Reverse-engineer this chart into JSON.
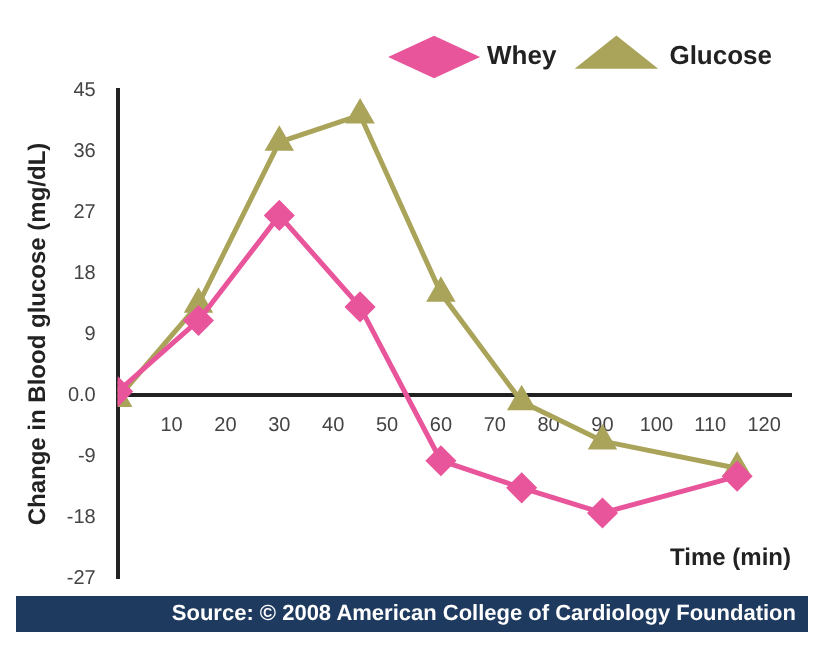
{
  "chart_data": {
    "type": "line",
    "xlabel": "Time (min)",
    "ylabel": "Change in Blood glucose (mg/dL)",
    "annotations": [
      "Source: © 2008 American College of Cardiology Foundation"
    ],
    "x": [
      0,
      15,
      30,
      45,
      60,
      75,
      90,
      115
    ],
    "series": [
      {
        "name": "Whey",
        "color": "#e8559b",
        "marker": "diamond",
        "values": [
          0.5,
          11,
          26.5,
          13,
          -9.7,
          -13.7,
          -17.4,
          -12
        ]
      },
      {
        "name": "Glucose",
        "color": "#a9a45a",
        "marker": "triangle",
        "values": [
          -0.5,
          13.4,
          37.3,
          41.3,
          15,
          -1,
          -6.8,
          -10.8
        ]
      }
    ],
    "xlim": [
      0,
      125
    ],
    "xticks": [
      10,
      20,
      30,
      40,
      50,
      60,
      70,
      80,
      90,
      100,
      110,
      120
    ],
    "ylim": [
      -27,
      45
    ],
    "yticks": [
      {
        "value": -27,
        "label": "-27"
      },
      {
        "value": -18,
        "label": "-18"
      },
      {
        "value": -9,
        "label": "-9"
      },
      {
        "value": 0,
        "label": "0.0"
      },
      9,
      18,
      27,
      36,
      45
    ],
    "grid": false,
    "legend": "top right",
    "line_style": "solid"
  }
}
